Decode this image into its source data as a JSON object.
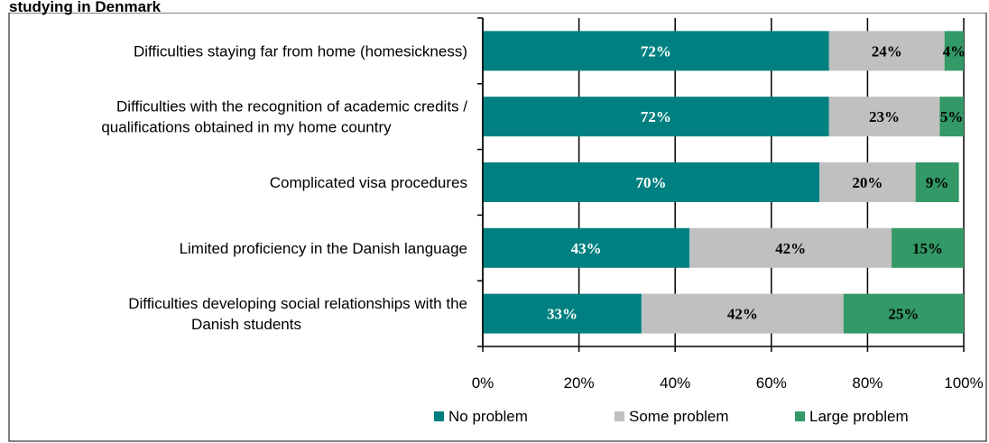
{
  "chart_data": {
    "type": "bar",
    "orientation": "horizontal",
    "stacked": true,
    "title": "studying in Denmark",
    "categories": [
      [
        "Difficulties staying far from home (homesickness)"
      ],
      [
        "Difficulties with the recognition of academic credits /",
        "qualifications obtained in my home country"
      ],
      [
        "Complicated visa procedures"
      ],
      [
        "Limited proficiency in the Danish language"
      ],
      [
        "Difficulties developing social relationships with the",
        "Danish students"
      ]
    ],
    "series": [
      {
        "name": "No problem",
        "color": "#008080",
        "label_color": "#ffffff",
        "values": [
          72,
          72,
          70,
          43,
          33
        ]
      },
      {
        "name": "Some problem",
        "color": "#c0c0c0",
        "label_color": "#000000",
        "values": [
          24,
          23,
          20,
          42,
          42
        ]
      },
      {
        "name": "Large problem",
        "color": "#339966",
        "label_color": "#000000",
        "values": [
          4,
          5,
          9,
          15,
          25
        ]
      }
    ],
    "xlim": [
      0,
      100
    ],
    "xticks": [
      "0%",
      "20%",
      "40%",
      "60%",
      "80%",
      "100%"
    ],
    "value_suffix": "%",
    "legend_position": "bottom",
    "grid": true
  }
}
